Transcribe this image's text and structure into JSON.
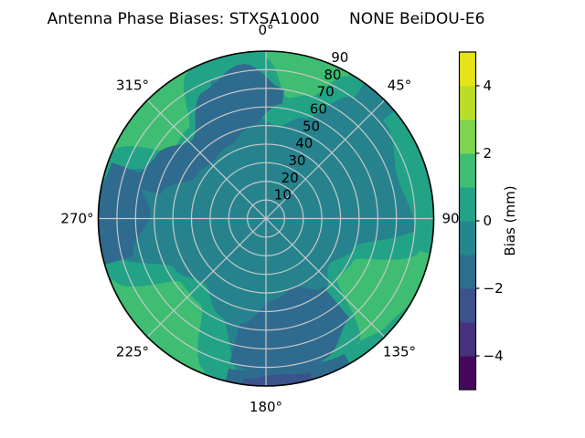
{
  "title": "Antenna Phase Biases: STXSA1000      NONE BeiDOU-E6",
  "chart_data": {
    "type": "polar_contour",
    "title": "Antenna Phase Biases: STXSA1000      NONE BeiDOU-E6",
    "colormap": "viridis",
    "theta_zero": "top",
    "theta_direction": "clockwise",
    "angular_ticks": [
      {
        "angle": 0,
        "label": "0°"
      },
      {
        "angle": 45,
        "label": "45°"
      },
      {
        "angle": 90,
        "label": "90"
      },
      {
        "angle": 135,
        "label": "135°"
      },
      {
        "angle": 180,
        "label": "180°"
      },
      {
        "angle": 225,
        "label": "225°"
      },
      {
        "angle": 270,
        "label": "270°"
      },
      {
        "angle": 315,
        "label": "315°"
      }
    ],
    "radial_axis": {
      "min": 0,
      "max": 90,
      "label_angle": 22.5
    },
    "radial_ticks": [
      {
        "value": 10,
        "label": "10"
      },
      {
        "value": 20,
        "label": "20"
      },
      {
        "value": 30,
        "label": "30"
      },
      {
        "value": 40,
        "label": "40"
      },
      {
        "value": 50,
        "label": "50"
      },
      {
        "value": 60,
        "label": "60"
      },
      {
        "value": 70,
        "label": "70"
      },
      {
        "value": 80,
        "label": "80"
      },
      {
        "value": 90,
        "label": "90"
      }
    ],
    "grid": {
      "ring_values": [
        10,
        20,
        30,
        40,
        50,
        60,
        70,
        80
      ],
      "spoke_angles": [
        0,
        45,
        90,
        135,
        180,
        225,
        270,
        315
      ],
      "color": "#c6c9c9",
      "rim_color": "#000000"
    },
    "base": {
      "color": "#26838e",
      "level_mm": "-1 to 0"
    },
    "regions": [
      {
        "name": "top-tealgreen",
        "color": "#22a386",
        "level_mm": "0 to 1",
        "az": [
          -22,
          36
        ],
        "r_inner": [
          80,
          56,
          50,
          58,
          80
        ],
        "r_outer": [
          91
        ]
      },
      {
        "name": "northwest-tealgreen",
        "color": "#22a386",
        "level_mm": "0 to 1",
        "az": [
          284,
          344
        ],
        "r_inner": [
          86,
          60,
          54,
          62,
          88
        ],
        "r_outer": [
          91
        ]
      },
      {
        "name": "southwest-tealgreen",
        "color": "#22a386",
        "level_mm": "0 to 1",
        "az": [
          186,
          260
        ],
        "r_inner": [
          88,
          58,
          48,
          56,
          88
        ],
        "r_outer": [
          91
        ]
      },
      {
        "name": "southeast-tealgreen",
        "color": "#22a386",
        "level_mm": "0 to 1",
        "az": [
          90,
          162
        ],
        "r_inner": [
          86,
          50,
          42,
          52,
          86
        ],
        "r_outer": [
          91
        ]
      },
      {
        "name": "east-rim-tealgreen",
        "color": "#22a386",
        "level_mm": "0 to 1",
        "az": [
          50,
          96
        ],
        "r_inner": [
          82,
          74,
          80
        ],
        "r_outer": [
          91
        ]
      },
      {
        "name": "top-green",
        "color": "#3fbd72",
        "level_mm": "1 to 2",
        "az": [
          0,
          30
        ],
        "r_inner": [
          86,
          66,
          70,
          88
        ],
        "r_outer": [
          91
        ]
      },
      {
        "name": "northwest-green",
        "color": "#3fbd72",
        "level_mm": "1 to 2",
        "az": [
          294,
          332
        ],
        "r_inner": [
          89,
          62,
          64,
          89
        ],
        "r_outer": [
          91
        ]
      },
      {
        "name": "southwest-green",
        "color": "#3fbd72",
        "level_mm": "1 to 2",
        "az": [
          202,
          248
        ],
        "r_inner": [
          88,
          58,
          57,
          88
        ],
        "r_outer": [
          91
        ]
      },
      {
        "name": "southeast-green",
        "color": "#3fbd72",
        "level_mm": "1 to 2",
        "az": [
          102,
          144
        ],
        "r_inner": [
          84,
          52,
          50,
          84
        ],
        "r_outer": [
          91,
          91,
          87,
          83
        ]
      },
      {
        "name": "northwest-dark-band",
        "color": "#2f6b8e",
        "level_mm": "-2 to -1",
        "az": [
          283,
          368
        ],
        "r_inner": [
          58,
          44,
          42,
          44,
          50,
          62
        ],
        "r_outer": [
          74,
          68,
          58,
          76,
          84,
          70
        ]
      },
      {
        "name": "west-rim-dark",
        "color": "#2f6b8e",
        "level_mm": "-2 to -1",
        "az": [
          254,
          290
        ],
        "r_inner": [
          74,
          62,
          72
        ],
        "r_outer": [
          91,
          91,
          88
        ]
      },
      {
        "name": "south-dark-lobe",
        "color": "#2f6b8e",
        "level_mm": "-2 to -1",
        "az": [
          140,
          194
        ],
        "r_inner": [
          48,
          40,
          44,
          58
        ],
        "r_outer": [
          70,
          82,
          86,
          80
        ]
      },
      {
        "name": "south-rim-dark",
        "color": "#2f6b8e",
        "level_mm": "-2 to -1",
        "az": [
          150,
          194
        ],
        "r_inner": [
          84,
          80,
          83
        ],
        "r_outer": [
          91
        ]
      },
      {
        "name": "south-rim-navy",
        "color": "#3b528b",
        "level_mm": "-3 to -2",
        "az": [
          164,
          188
        ],
        "r_inner": [
          86,
          84,
          87
        ],
        "r_outer": [
          91
        ]
      }
    ],
    "colorbar": {
      "label": "Bias (mm)",
      "range": [
        -5,
        5
      ],
      "ticks": [
        {
          "value": 4,
          "label": "4"
        },
        {
          "value": 2,
          "label": "2"
        },
        {
          "value": 0,
          "label": "0"
        },
        {
          "value": -2,
          "label": "−2"
        },
        {
          "value": -4,
          "label": "−4"
        }
      ],
      "band_colors_bottom_to_top": [
        "#46085c",
        "#46327e",
        "#3b528b",
        "#2d6e8e",
        "#24878d",
        "#22a386",
        "#3fbd72",
        "#7ed34f",
        "#bade28",
        "#e6e419"
      ]
    }
  }
}
